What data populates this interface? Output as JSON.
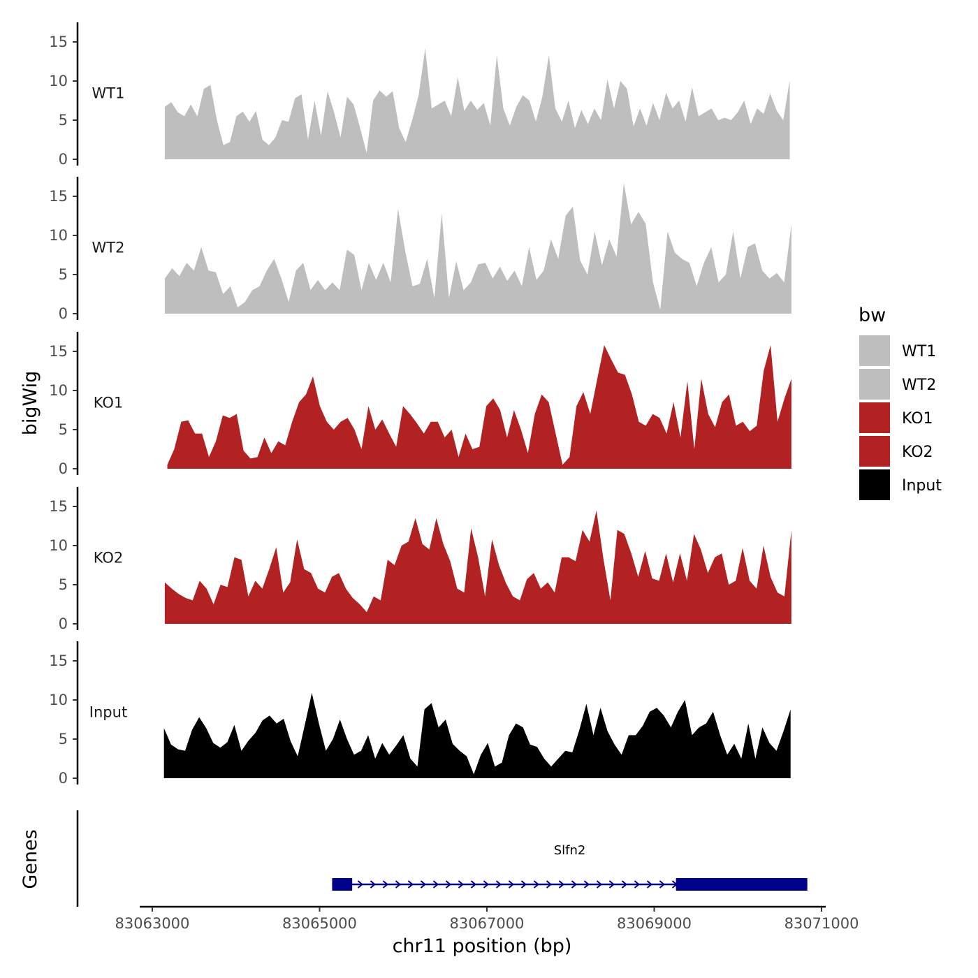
{
  "chart_data": {
    "type": "area",
    "ylabel": "bigWig",
    "xlabel": "chr11 position (bp)",
    "xlim": [
      83062850,
      83071050
    ],
    "x_ticks": [
      83063000,
      83065000,
      83067000,
      83069000,
      83071000
    ],
    "x_tick_labels": [
      "83063000",
      "83065000",
      "83067000",
      "83069000",
      "83071000"
    ],
    "ylim": [
      0,
      17.5
    ],
    "y_ticks": [
      0,
      5,
      10,
      15
    ],
    "y_tick_labels": [
      "0",
      "5",
      "10",
      "15"
    ],
    "legend": {
      "title": "bw",
      "position": "right",
      "entries": [
        {
          "label": "WT1",
          "color": "#bebebe"
        },
        {
          "label": "WT2",
          "color": "#bebebe"
        },
        {
          "label": "KO1",
          "color": "#b22222"
        },
        {
          "label": "KO2",
          "color": "#b22222"
        },
        {
          "label": "Input",
          "color": "#000000"
        }
      ]
    },
    "series": [
      {
        "name": "WT1",
        "color": "#bebebe",
        "x_start": 83063150,
        "x_end": 83070620,
        "values": [
          6.7,
          7.3,
          6,
          5.5,
          7,
          5.5,
          9,
          9.5,
          5,
          1.8,
          2.2,
          5.5,
          6.1,
          4.8,
          6.2,
          2.5,
          1.8,
          2.8,
          5,
          4.8,
          7.8,
          8.3,
          2.5,
          7.5,
          3,
          8.7,
          6,
          2.8,
          8,
          7,
          4,
          0.8,
          7.5,
          8.8,
          8,
          8.7,
          4,
          2.2,
          5,
          8.2,
          14.2,
          6.5,
          7,
          7.5,
          5.5,
          10.5,
          6.2,
          7.5,
          6.3,
          7.2,
          4.3,
          13.3,
          6.5,
          4.3,
          6.7,
          8.2,
          7.5,
          4.8,
          8,
          13.3,
          6.5,
          4.8,
          7.5,
          4,
          6.3,
          4.5,
          6.5,
          5,
          10.2,
          6.5,
          10,
          9,
          4.2,
          6.5,
          4.3,
          7.2,
          5,
          8.5,
          6.5,
          7.5,
          4.8,
          9.2,
          5.5,
          6,
          6.5,
          5,
          5.3,
          5,
          6,
          7.5,
          4.5,
          6.5,
          5.8,
          8.4,
          6.2,
          5,
          10.1
        ]
      },
      {
        "name": "WT2",
        "color": "#bebebe",
        "x_start": 83063150,
        "x_end": 83070640,
        "values": [
          4.5,
          5.8,
          4.8,
          6.5,
          5.5,
          8.5,
          5.5,
          5.3,
          2.5,
          3.5,
          0.8,
          1.5,
          3,
          3.5,
          5.5,
          7,
          4.5,
          1.5,
          5.5,
          6.5,
          3,
          4.3,
          3,
          4,
          3,
          8.2,
          7.5,
          3,
          6.5,
          4.3,
          6.5,
          4,
          13.4,
          8,
          3.5,
          3.8,
          7,
          2,
          12.8,
          2,
          6.7,
          3,
          4,
          6.3,
          6.5,
          4.5,
          6,
          4.2,
          5.5,
          3.5,
          8.5,
          4.3,
          5.5,
          9.5,
          7,
          12.5,
          13.7,
          6.8,
          5,
          10.5,
          6.2,
          9.5,
          7.3,
          16.7,
          11.4,
          13,
          11.5,
          4,
          0.5,
          10.5,
          7.8,
          7,
          6.5,
          3.5,
          6.5,
          8.5,
          4,
          5,
          10.5,
          4.5,
          8.5,
          9,
          5.5,
          4.5,
          5.2,
          4,
          11.4
        ]
      },
      {
        "name": "KO1",
        "color": "#b22222",
        "x_start": 83063180,
        "x_end": 83070640,
        "values": [
          0.5,
          2.5,
          6,
          6.2,
          4.5,
          4.5,
          1.5,
          3.5,
          6.8,
          6.5,
          7,
          2.3,
          1.3,
          1.5,
          4,
          2,
          3.5,
          3,
          6,
          8.5,
          9.5,
          11.8,
          8,
          6,
          5,
          6,
          6.5,
          5,
          2.5,
          8,
          5,
          6.3,
          4.5,
          2.8,
          8,
          7,
          5.8,
          4.5,
          6,
          6,
          4,
          5,
          1.5,
          4.5,
          2.5,
          2.8,
          8,
          9,
          7.5,
          4,
          7.5,
          5,
          2,
          7,
          9.5,
          8.5,
          4.5,
          0.5,
          1.5,
          8,
          9.8,
          7,
          11.5,
          15.8,
          14,
          12.3,
          12,
          9.5,
          6,
          5.5,
          7,
          6.5,
          4.5,
          8.5,
          4,
          11.2,
          2.5,
          11.5,
          7,
          5.3,
          8.5,
          9.5,
          5.5,
          6,
          4.8,
          5.5,
          12.5,
          15.8,
          6,
          9,
          11.5
        ]
      },
      {
        "name": "KO2",
        "color": "#b22222",
        "x_start": 83063150,
        "x_end": 83070640,
        "values": [
          5.3,
          4.5,
          3.8,
          3.3,
          3,
          5.5,
          4.5,
          2.5,
          5,
          4.7,
          8.5,
          8.2,
          3.5,
          5.5,
          4.5,
          7,
          9.8,
          4,
          5.3,
          10.8,
          7,
          6.5,
          4.5,
          4,
          6,
          6.5,
          4.5,
          3.3,
          2.5,
          1.5,
          3.5,
          3,
          8.2,
          7.5,
          10,
          10.5,
          13.5,
          10.2,
          9.5,
          13.5,
          10.2,
          8,
          4.5,
          4,
          12.2,
          8.5,
          3.5,
          10.8,
          7.5,
          5.2,
          3.5,
          3,
          5.7,
          6.5,
          4.5,
          5.3,
          4,
          8.5,
          8.5,
          8,
          12,
          10.5,
          14.5,
          8.3,
          3,
          12,
          11.5,
          9,
          6,
          9.3,
          5.8,
          5.5,
          9,
          5.3,
          9,
          5.5,
          11.5,
          9.5,
          6.5,
          8.5,
          9,
          5,
          5.5,
          9.7,
          5.5,
          4.5,
          10,
          6,
          4,
          3.5,
          12
        ]
      },
      {
        "name": "Input",
        "color": "#000000",
        "x_start": 83063140,
        "x_end": 83070630,
        "values": [
          6.4,
          4.3,
          3.7,
          3.5,
          6.2,
          7.8,
          6.4,
          4.5,
          3.9,
          4.6,
          6.8,
          3.5,
          4.8,
          5.8,
          7.4,
          8,
          7,
          7.6,
          4.7,
          2.8,
          6.8,
          10.9,
          7,
          3.5,
          5,
          7.5,
          5,
          3,
          3.5,
          5.5,
          2.5,
          4.5,
          3,
          4.2,
          5.5,
          2.5,
          1.5,
          8.8,
          9.6,
          6.5,
          7.5,
          4.4,
          3.5,
          2.8,
          0.5,
          3,
          4.5,
          1.5,
          2,
          5.5,
          7,
          6.5,
          4.3,
          4,
          2.5,
          1.5,
          2.5,
          3.5,
          3.3,
          6.2,
          9.5,
          5.5,
          9,
          6,
          4.3,
          3,
          5.5,
          5.5,
          6.7,
          8.5,
          9,
          8,
          6.5,
          8.5,
          10,
          5.5,
          6.5,
          7,
          8.5,
          5.5,
          3,
          4.4,
          2.5,
          7,
          2.5,
          6.5,
          4.5,
          3.5,
          6,
          8.8
        ]
      }
    ],
    "genes_track": {
      "label": "Genes",
      "gene_name": "Slfn2",
      "color": "#00008b",
      "strand": "+",
      "start": 83065150,
      "end": 83070830,
      "exons": [
        [
          83065150,
          83065390
        ],
        [
          83069260,
          83070830
        ]
      ]
    }
  }
}
